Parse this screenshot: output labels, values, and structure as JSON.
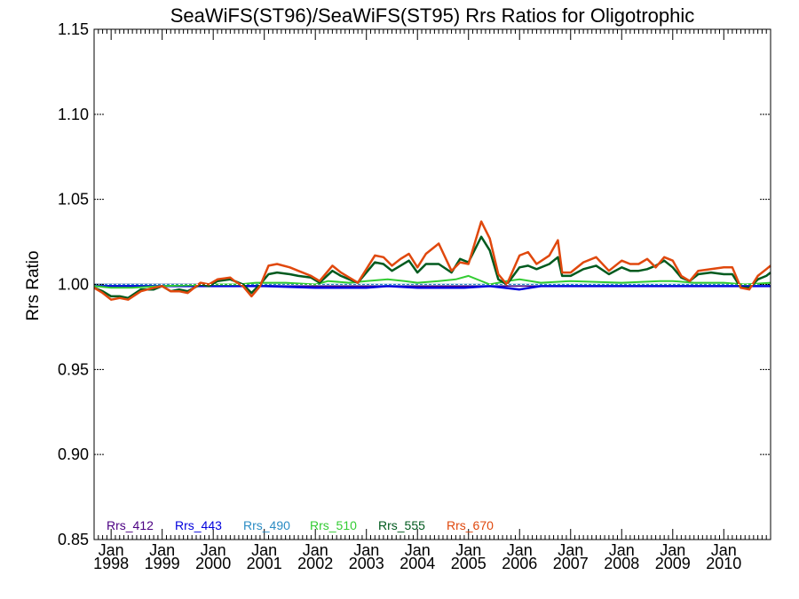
{
  "chart_data": {
    "type": "line",
    "title": "SeaWiFS(ST96)/SeaWiFS(ST95)  Rrs Ratios for Oligotrophic",
    "xlabel": "",
    "ylabel": "Rrs Ratio",
    "xlim": [
      "1997-09",
      "2010-12"
    ],
    "ylim": [
      0.85,
      1.15
    ],
    "y_ticks": [
      "0.85",
      "0.90",
      "0.95",
      "1.00",
      "1.05",
      "1.10",
      "1.15"
    ],
    "x_ticks": [
      {
        "month": "Jan",
        "year": "1998",
        "date": "1998-01"
      },
      {
        "month": "Jan",
        "year": "1999",
        "date": "1999-01"
      },
      {
        "month": "Jan",
        "year": "2000",
        "date": "2000-01"
      },
      {
        "month": "Jan",
        "year": "2001",
        "date": "2001-01"
      },
      {
        "month": "Jan",
        "year": "2002",
        "date": "2002-01"
      },
      {
        "month": "Jan",
        "year": "2003",
        "date": "2003-01"
      },
      {
        "month": "Jan",
        "year": "2004",
        "date": "2004-01"
      },
      {
        "month": "Jan",
        "year": "2005",
        "date": "2005-01"
      },
      {
        "month": "Jan",
        "year": "2006",
        "date": "2006-01"
      },
      {
        "month": "Jan",
        "year": "2007",
        "date": "2007-01"
      },
      {
        "month": "Jan",
        "year": "2008",
        "date": "2008-01"
      },
      {
        "month": "Jan",
        "year": "2009",
        "date": "2009-01"
      },
      {
        "month": "Jan",
        "year": "2010",
        "date": "2010-01"
      }
    ],
    "reference_line": {
      "y": 1.0,
      "style": "dotted"
    },
    "legend_position": "bottom-left",
    "grid": false,
    "series": [
      {
        "name": "Rrs_412",
        "color": "#4b0082",
        "line_width": 1.5,
        "points": [
          [
            "1997-09",
            1.0
          ],
          [
            "1998-06",
            1.0
          ],
          [
            "1999-06",
            1.0
          ],
          [
            "2000-06",
            1.0
          ],
          [
            "2001-06",
            0.999
          ],
          [
            "2002-06",
            0.999
          ],
          [
            "2003-06",
            0.999
          ],
          [
            "2004-06",
            0.999
          ],
          [
            "2005-06",
            0.999
          ],
          [
            "2006-06",
            0.999
          ],
          [
            "2007-06",
            0.999
          ],
          [
            "2008-06",
            0.999
          ],
          [
            "2009-06",
            0.999
          ],
          [
            "2010-12",
            0.999
          ]
        ]
      },
      {
        "name": "Rrs_443",
        "color": "#0000dd",
        "line_width": 2.5,
        "points": [
          [
            "1997-09",
            0.999
          ],
          [
            "1998-06",
            0.999
          ],
          [
            "1999-06",
            0.999
          ],
          [
            "2000-06",
            0.999
          ],
          [
            "2001-01",
            0.999
          ],
          [
            "2002-01",
            0.998
          ],
          [
            "2003-01",
            0.998
          ],
          [
            "2003-06",
            0.999
          ],
          [
            "2004-01",
            0.998
          ],
          [
            "2004-12",
            0.998
          ],
          [
            "2005-06",
            0.999
          ],
          [
            "2006-01",
            0.997
          ],
          [
            "2006-06",
            0.999
          ],
          [
            "2007-06",
            0.999
          ],
          [
            "2008-06",
            0.999
          ],
          [
            "2009-06",
            0.999
          ],
          [
            "2010-06",
            0.999
          ],
          [
            "2010-12",
            0.999
          ]
        ]
      },
      {
        "name": "Rrs_490",
        "color": "#2b8cc4",
        "line_width": 1.5,
        "points": [
          [
            "1997-09",
            1.0
          ],
          [
            "1998-06",
            1.0
          ],
          [
            "1999-06",
            1.0
          ],
          [
            "2000-06",
            1.0
          ],
          [
            "2001-06",
            1.0
          ],
          [
            "2002-06",
            1.0
          ],
          [
            "2003-06",
            1.0
          ],
          [
            "2004-06",
            1.0
          ],
          [
            "2005-06",
            1.0
          ],
          [
            "2006-06",
            1.0
          ],
          [
            "2007-06",
            1.0
          ],
          [
            "2008-06",
            1.0
          ],
          [
            "2009-06",
            1.0
          ],
          [
            "2010-12",
            1.0
          ]
        ]
      },
      {
        "name": "Rrs_510",
        "color": "#33cc33",
        "line_width": 2,
        "points": [
          [
            "1997-09",
            0.999
          ],
          [
            "1998-01",
            0.998
          ],
          [
            "1998-06",
            0.998
          ],
          [
            "1999-01",
            0.999
          ],
          [
            "2000-01",
            1.0
          ],
          [
            "2000-07",
            1.0
          ],
          [
            "2000-11",
            1.001
          ],
          [
            "2001-06",
            1.001
          ],
          [
            "2002-01",
            1.0
          ],
          [
            "2002-04",
            1.002
          ],
          [
            "2002-09",
            1.001
          ],
          [
            "2003-01",
            1.002
          ],
          [
            "2003-06",
            1.003
          ],
          [
            "2003-10",
            1.002
          ],
          [
            "2004-01",
            1.001
          ],
          [
            "2004-06",
            1.002
          ],
          [
            "2004-10",
            1.003
          ],
          [
            "2005-01",
            1.005
          ],
          [
            "2005-06",
            1.0
          ],
          [
            "2005-10",
            1.002
          ],
          [
            "2006-01",
            1.003
          ],
          [
            "2006-06",
            1.001
          ],
          [
            "2007-01",
            1.002
          ],
          [
            "2008-01",
            1.001
          ],
          [
            "2008-10",
            1.002
          ],
          [
            "2009-01",
            1.002
          ],
          [
            "2009-06",
            1.001
          ],
          [
            "2010-01",
            1.001
          ],
          [
            "2010-06",
            1.0
          ],
          [
            "2010-12",
            1.001
          ]
        ]
      },
      {
        "name": "Rrs_555",
        "color": "#005a1e",
        "line_width": 2.5,
        "points": [
          [
            "1997-09",
            0.998
          ],
          [
            "1997-11",
            0.996
          ],
          [
            "1998-01",
            0.993
          ],
          [
            "1998-03",
            0.993
          ],
          [
            "1998-05",
            0.992
          ],
          [
            "1998-08",
            0.997
          ],
          [
            "1998-11",
            0.997
          ],
          [
            "1999-01",
            0.999
          ],
          [
            "1999-03",
            0.996
          ],
          [
            "1999-05",
            0.997
          ],
          [
            "1999-07",
            0.996
          ],
          [
            "1999-10",
            1.0
          ],
          [
            "1999-12",
            0.999
          ],
          [
            "2000-02",
            1.002
          ],
          [
            "2000-05",
            1.003
          ],
          [
            "2000-06",
            1.002
          ],
          [
            "2000-08",
            1.0
          ],
          [
            "2000-10",
            0.995
          ],
          [
            "2000-12",
            1.0
          ],
          [
            "2001-02",
            1.006
          ],
          [
            "2001-04",
            1.007
          ],
          [
            "2001-07",
            1.006
          ],
          [
            "2001-09",
            1.005
          ],
          [
            "2001-12",
            1.004
          ],
          [
            "2002-02",
            1.001
          ],
          [
            "2002-05",
            1.008
          ],
          [
            "2002-07",
            1.005
          ],
          [
            "2002-09",
            1.003
          ],
          [
            "2002-11",
            1.001
          ],
          [
            "2003-03",
            1.013
          ],
          [
            "2003-05",
            1.012
          ],
          [
            "2003-07",
            1.008
          ],
          [
            "2003-09",
            1.011
          ],
          [
            "2003-11",
            1.014
          ],
          [
            "2004-01",
            1.007
          ],
          [
            "2004-03",
            1.012
          ],
          [
            "2004-06",
            1.012
          ],
          [
            "2004-09",
            1.007
          ],
          [
            "2004-11",
            1.015
          ],
          [
            "2005-01",
            1.013
          ],
          [
            "2005-04",
            1.028
          ],
          [
            "2005-06",
            1.02
          ],
          [
            "2005-08",
            1.003
          ],
          [
            "2005-10",
            1.0
          ],
          [
            "2006-01",
            1.01
          ],
          [
            "2006-03",
            1.011
          ],
          [
            "2006-05",
            1.009
          ],
          [
            "2006-08",
            1.012
          ],
          [
            "2006-10",
            1.016
          ],
          [
            "2006-11",
            1.005
          ],
          [
            "2007-01",
            1.005
          ],
          [
            "2007-04",
            1.009
          ],
          [
            "2007-07",
            1.011
          ],
          [
            "2007-10",
            1.006
          ],
          [
            "2008-01",
            1.01
          ],
          [
            "2008-03",
            1.008
          ],
          [
            "2008-05",
            1.008
          ],
          [
            "2008-07",
            1.009
          ],
          [
            "2008-09",
            1.011
          ],
          [
            "2008-11",
            1.014
          ],
          [
            "2009-01",
            1.01
          ],
          [
            "2009-03",
            1.004
          ],
          [
            "2009-05",
            1.002
          ],
          [
            "2009-07",
            1.006
          ],
          [
            "2009-10",
            1.007
          ],
          [
            "2010-01",
            1.006
          ],
          [
            "2010-03",
            1.006
          ],
          [
            "2010-05",
            0.998
          ],
          [
            "2010-07",
            0.998
          ],
          [
            "2010-09",
            1.003
          ],
          [
            "2010-11",
            1.005
          ],
          [
            "2010-12",
            1.007
          ]
        ]
      },
      {
        "name": "Rrs_670",
        "color": "#e0480d",
        "line_width": 2.5,
        "points": [
          [
            "1997-09",
            0.998
          ],
          [
            "1997-11",
            0.995
          ],
          [
            "1998-01",
            0.991
          ],
          [
            "1998-03",
            0.992
          ],
          [
            "1998-05",
            0.991
          ],
          [
            "1998-08",
            0.996
          ],
          [
            "1998-11",
            0.998
          ],
          [
            "1999-01",
            0.999
          ],
          [
            "1999-03",
            0.996
          ],
          [
            "1999-05",
            0.996
          ],
          [
            "1999-07",
            0.995
          ],
          [
            "1999-10",
            1.001
          ],
          [
            "1999-12",
            1.0
          ],
          [
            "2000-02",
            1.003
          ],
          [
            "2000-05",
            1.004
          ],
          [
            "2000-06",
            1.002
          ],
          [
            "2000-08",
            0.999
          ],
          [
            "2000-10",
            0.993
          ],
          [
            "2000-12",
            0.999
          ],
          [
            "2001-02",
            1.011
          ],
          [
            "2001-04",
            1.012
          ],
          [
            "2001-07",
            1.01
          ],
          [
            "2001-09",
            1.008
          ],
          [
            "2001-12",
            1.005
          ],
          [
            "2002-02",
            1.002
          ],
          [
            "2002-05",
            1.011
          ],
          [
            "2002-07",
            1.007
          ],
          [
            "2002-09",
            1.004
          ],
          [
            "2002-11",
            1.001
          ],
          [
            "2003-03",
            1.017
          ],
          [
            "2003-05",
            1.016
          ],
          [
            "2003-07",
            1.011
          ],
          [
            "2003-09",
            1.015
          ],
          [
            "2003-11",
            1.018
          ],
          [
            "2004-01",
            1.01
          ],
          [
            "2004-03",
            1.018
          ],
          [
            "2004-06",
            1.024
          ],
          [
            "2004-09",
            1.008
          ],
          [
            "2004-11",
            1.013
          ],
          [
            "2005-01",
            1.012
          ],
          [
            "2005-04",
            1.037
          ],
          [
            "2005-06",
            1.027
          ],
          [
            "2005-08",
            1.006
          ],
          [
            "2005-10",
            1.0
          ],
          [
            "2006-01",
            1.017
          ],
          [
            "2006-03",
            1.019
          ],
          [
            "2006-05",
            1.012
          ],
          [
            "2006-08",
            1.017
          ],
          [
            "2006-10",
            1.026
          ],
          [
            "2006-11",
            1.007
          ],
          [
            "2007-01",
            1.007
          ],
          [
            "2007-04",
            1.013
          ],
          [
            "2007-07",
            1.016
          ],
          [
            "2007-10",
            1.008
          ],
          [
            "2008-01",
            1.014
          ],
          [
            "2008-03",
            1.012
          ],
          [
            "2008-05",
            1.012
          ],
          [
            "2008-07",
            1.015
          ],
          [
            "2008-09",
            1.01
          ],
          [
            "2008-11",
            1.016
          ],
          [
            "2009-01",
            1.014
          ],
          [
            "2009-03",
            1.005
          ],
          [
            "2009-05",
            1.002
          ],
          [
            "2009-07",
            1.008
          ],
          [
            "2009-10",
            1.009
          ],
          [
            "2010-01",
            1.01
          ],
          [
            "2010-03",
            1.01
          ],
          [
            "2010-05",
            0.998
          ],
          [
            "2010-07",
            0.997
          ],
          [
            "2010-09",
            1.005
          ],
          [
            "2010-11",
            1.009
          ],
          [
            "2010-12",
            1.011
          ]
        ]
      }
    ]
  }
}
